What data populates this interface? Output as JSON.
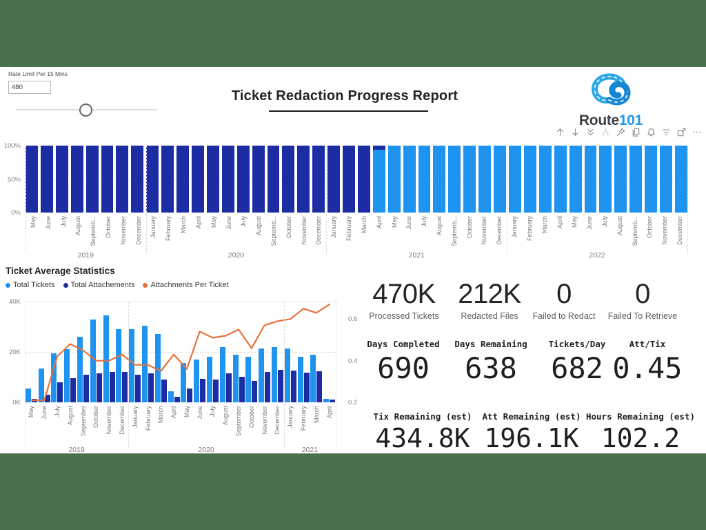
{
  "page": {
    "title": "Ticket Redaction Progress Report"
  },
  "colors": {
    "band": "#4a7050",
    "navy": "#1c2da4",
    "light_blue": "#1e93f0",
    "orange": "#e8713b",
    "logo_blue": "#2196e8",
    "axis_text": "#7a7a7a"
  },
  "rate_limit": {
    "label": "Rate Limit Per 15 Mins",
    "value": "480",
    "slider_percent": 49
  },
  "logo": {
    "brand_prefix": "Route",
    "brand_suffix": "101"
  },
  "toolbar": {
    "icons": [
      "arrow-up",
      "arrow-down",
      "double-arrow-down",
      "expand-hierarchy",
      "pin",
      "copy",
      "bell",
      "filter",
      "focus-mode",
      "more-options"
    ]
  },
  "chart_data": [
    {
      "type": "bar",
      "subtype": "stacked-100",
      "y_ticks": [
        "100%",
        "50%",
        "0%"
      ],
      "ylim": [
        0,
        100
      ],
      "groups": [
        {
          "year": "2019",
          "months": [
            "May",
            "June",
            "July",
            "August",
            "Septemb...",
            "October",
            "November",
            "December"
          ]
        },
        {
          "year": "2020",
          "months": [
            "January",
            "February",
            "March",
            "April",
            "May",
            "June",
            "July",
            "August",
            "Septemb...",
            "October",
            "November",
            "December"
          ]
        },
        {
          "year": "2021",
          "months": [
            "January",
            "February",
            "March",
            "April",
            "May",
            "June",
            "July",
            "August",
            "Septemb...",
            "October",
            "November",
            "December"
          ]
        },
        {
          "year": "2022",
          "months": [
            "January",
            "February",
            "March",
            "April",
            "May",
            "June",
            "July",
            "August",
            "Septemb...",
            "October",
            "November",
            "December"
          ]
        }
      ],
      "series": [
        {
          "name": "dark_blue_pct",
          "color_key": "navy",
          "values": [
            100,
            100,
            100,
            100,
            100,
            100,
            100,
            100,
            100,
            100,
            100,
            100,
            100,
            100,
            100,
            100,
            100,
            100,
            100,
            100,
            100,
            100,
            100,
            6,
            0,
            0,
            0,
            0,
            0,
            0,
            0,
            0,
            0,
            0,
            0,
            0,
            0,
            0,
            0,
            0,
            0,
            0,
            0,
            0
          ]
        },
        {
          "name": "light_blue_pct",
          "color_key": "light_blue",
          "values": [
            0,
            0,
            0,
            0,
            0,
            0,
            0,
            0,
            0,
            0,
            0,
            0,
            0,
            0,
            0,
            0,
            0,
            0,
            0,
            0,
            0,
            0,
            0,
            94,
            100,
            100,
            100,
            100,
            100,
            100,
            100,
            100,
            100,
            100,
            100,
            100,
            100,
            100,
            100,
            100,
            100,
            100,
            100,
            100
          ]
        }
      ]
    },
    {
      "type": "bar",
      "subtype": "combo-bar-line",
      "title": "Ticket Average Statistics",
      "legend": [
        {
          "label": "Total Tickets",
          "color_key": "light_blue"
        },
        {
          "label": "Total Attachements",
          "color_key": "navy"
        },
        {
          "label": "Attachments Per Ticket",
          "color_key": "orange"
        }
      ],
      "left_axis": {
        "ticks": [
          "40K",
          "20K",
          "0K"
        ],
        "min": 0,
        "max": 40000
      },
      "right_axis": {
        "ticks": [
          "0.6",
          "0.4",
          "0.2"
        ],
        "min": 0.2,
        "max": 0.684
      },
      "groups": [
        {
          "year": "2019",
          "months": [
            "May",
            "June",
            "July",
            "August",
            "September",
            "October",
            "November",
            "December"
          ]
        },
        {
          "year": "2020",
          "months": [
            "January",
            "February",
            "March",
            "April",
            "May",
            "June",
            "July",
            "August",
            "September",
            "October",
            "November",
            "December"
          ]
        },
        {
          "year": "2021",
          "months": [
            "January",
            "February",
            "March",
            "April"
          ]
        }
      ],
      "series": [
        {
          "name": "Total Tickets",
          "type": "bar",
          "axis": "left",
          "color_key": "light_blue",
          "values": [
            5500,
            13500,
            19500,
            21000,
            26000,
            33000,
            34500,
            29000,
            29000,
            30500,
            27000,
            4500,
            15500,
            17000,
            18000,
            22000,
            19000,
            18000,
            21500,
            22000,
            21500,
            18000,
            19000,
            1400
          ]
        },
        {
          "name": "Total Attachements",
          "type": "bar",
          "axis": "left",
          "color_key": "navy",
          "values": [
            1400,
            3000,
            8000,
            9500,
            11000,
            11500,
            12000,
            12000,
            11000,
            11500,
            9000,
            2200,
            5500,
            9300,
            9000,
            11500,
            10200,
            8500,
            12000,
            13000,
            12500,
            11800,
            12300,
            1100
          ]
        },
        {
          "name": "Attachments Per Ticket",
          "type": "line",
          "axis": "right",
          "color_key": "orange",
          "values": [
            0.21,
            0.21,
            0.42,
            0.48,
            0.45,
            0.4,
            0.4,
            0.43,
            0.38,
            0.38,
            0.35,
            0.43,
            0.36,
            0.54,
            0.51,
            0.52,
            0.55,
            0.46,
            0.57,
            0.59,
            0.6,
            0.65,
            0.63,
            0.67
          ]
        }
      ]
    }
  ],
  "kpis": {
    "row1": [
      {
        "value": "470K",
        "label": "Processed Tickets"
      },
      {
        "value": "212K",
        "label": "Redacted Files"
      },
      {
        "value": "0",
        "label": "Failed to Redact"
      },
      {
        "value": "0",
        "label": "Failed To Retrieve"
      }
    ],
    "row2": [
      {
        "label": "Days Completed",
        "value": "690"
      },
      {
        "label": "Days Remaining",
        "value": "638"
      },
      {
        "label": "Tickets/Day",
        "value": "682"
      },
      {
        "label": "Att/Tix",
        "value": "0.45"
      }
    ],
    "row3": [
      {
        "label": "Tix Remaining (est)",
        "value": "434.8K"
      },
      {
        "label": "Att Remaining (est)",
        "value": "196.1K"
      },
      {
        "label": "Hours Remaining (est)",
        "value": "102.2"
      }
    ]
  }
}
